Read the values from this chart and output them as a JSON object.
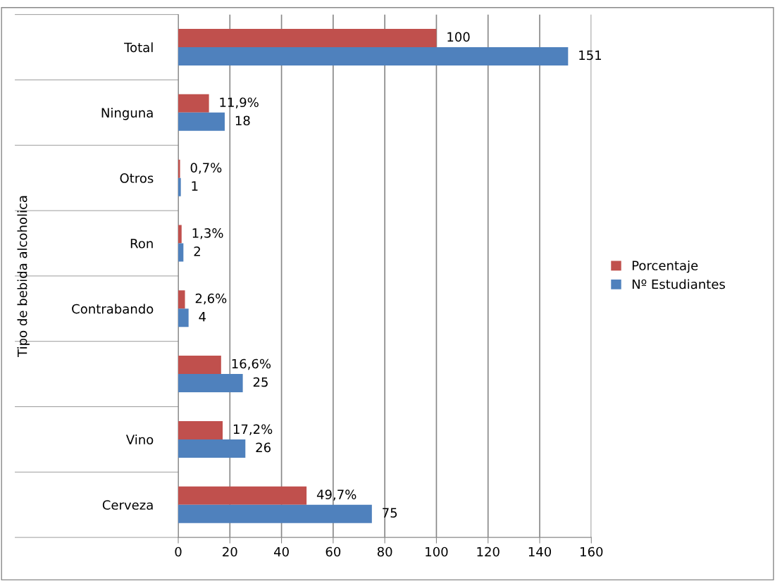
{
  "chart_data": {
    "type": "bar",
    "orientation": "horizontal",
    "ylabel": "Tipo de bebida alcoholica",
    "categories": [
      "Total",
      "Ninguna",
      "Otros",
      "Ron",
      "Contrabando",
      null,
      "Vino",
      "Cerveza"
    ],
    "series": [
      {
        "name": "Porcentaje",
        "color": "#c0504d",
        "values": [
          100,
          11.9,
          0.7,
          1.3,
          2.6,
          16.6,
          17.2,
          49.7
        ],
        "value_labels": [
          "100",
          "11,9%",
          "0,7%",
          "1,3%",
          "2,6%",
          "16,6%",
          "17,2%",
          "49,7%"
        ]
      },
      {
        "name": "Nº Estudiantes",
        "color": "#4f81bd",
        "values": [
          151,
          18,
          1,
          2,
          4,
          25,
          26,
          75
        ],
        "value_labels": [
          "151",
          "18",
          "1",
          "2",
          "4",
          "25",
          "26",
          "75"
        ]
      }
    ],
    "xlim": [
      0,
      160
    ],
    "xticks": [
      0,
      20,
      40,
      60,
      80,
      100,
      120,
      140,
      160
    ],
    "grid": "x",
    "legend": "right"
  }
}
